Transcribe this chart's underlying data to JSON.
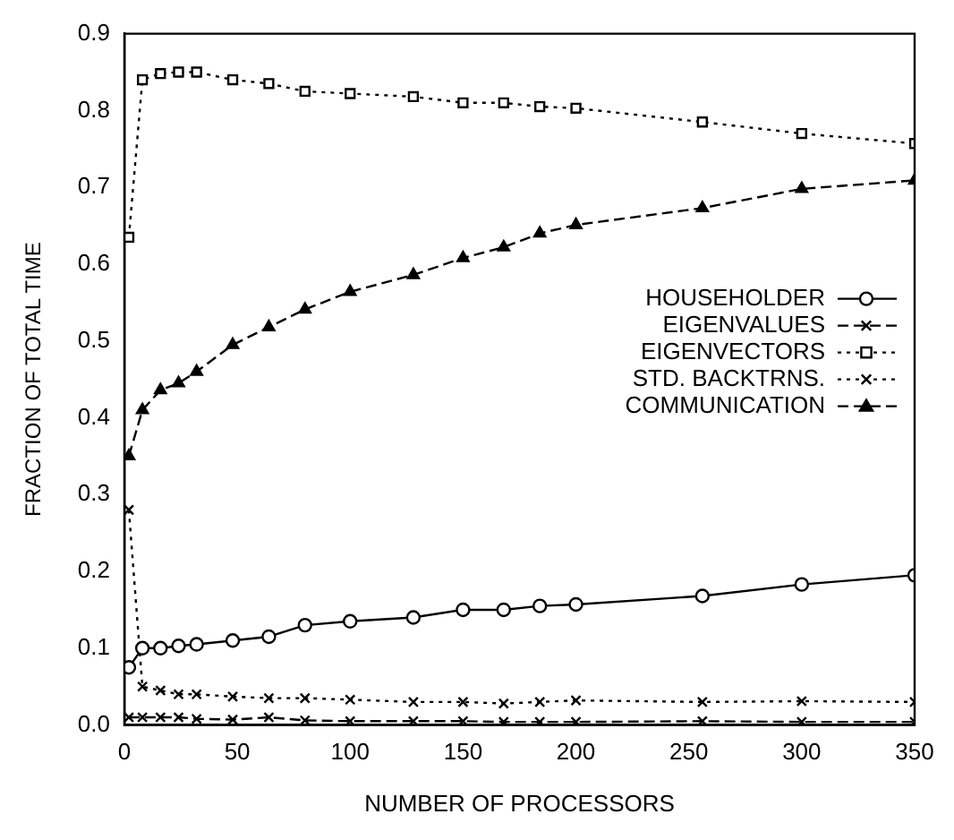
{
  "chart_data": {
    "type": "line",
    "xlabel": "NUMBER OF PROCESSORS",
    "ylabel": "FRACTION OF TOTAL TIME",
    "x": [
      2,
      8,
      16,
      24,
      32,
      48,
      64,
      80,
      100,
      128,
      150,
      168,
      184,
      200,
      256,
      300,
      350
    ],
    "xlim": [
      0,
      350
    ],
    "xticks": [
      0,
      50,
      100,
      150,
      200,
      250,
      300,
      350
    ],
    "ylim": [
      0,
      0.9
    ],
    "yticks": [
      {
        "value": 0,
        "label": "0.0"
      },
      0.1,
      0.2,
      0.3,
      0.4,
      0.5,
      0.6,
      0.7,
      0.8,
      0.9
    ],
    "grid": false,
    "legend": "right",
    "series": [
      {
        "name": "HOUSEHOLDER",
        "color": "#000000",
        "marker": "circle",
        "line_style": "solid",
        "values": [
          0.075,
          0.1,
          0.1,
          0.103,
          0.105,
          0.11,
          0.115,
          0.13,
          0.135,
          0.14,
          0.15,
          0.15,
          0.155,
          0.157,
          0.168,
          0.183,
          0.195
        ]
      },
      {
        "name": "EIGENVALUES",
        "color": "#000000",
        "marker": "cross",
        "line_style": "dashed",
        "values": [
          0.01,
          0.01,
          0.01,
          0.01,
          0.008,
          0.007,
          0.01,
          0.006,
          0.005,
          0.005,
          0.005,
          0.004,
          0.004,
          0.004,
          0.005,
          0.004,
          0.004
        ]
      },
      {
        "name": "EIGENVECTORS",
        "color": "#000000",
        "marker": "square",
        "line_style": "dotted",
        "values": [
          0.635,
          0.84,
          0.848,
          0.85,
          0.85,
          0.84,
          0.835,
          0.825,
          0.822,
          0.818,
          0.81,
          0.81,
          0.805,
          0.803,
          0.785,
          0.77,
          0.757
        ]
      },
      {
        "name": "STD. BACKTRNS.",
        "color": "#000000",
        "marker": "cross",
        "line_style": "dotted",
        "values": [
          0.28,
          0.05,
          0.045,
          0.04,
          0.04,
          0.037,
          0.035,
          0.035,
          0.033,
          0.03,
          0.03,
          0.028,
          0.03,
          0.032,
          0.03,
          0.031,
          0.03
        ]
      },
      {
        "name": "COMMUNICATION",
        "color": "#000000",
        "marker": "triangle",
        "line_style": "dashed",
        "values": [
          0.35,
          0.41,
          0.436,
          0.445,
          0.46,
          0.495,
          0.518,
          0.541,
          0.564,
          0.586,
          0.608,
          0.622,
          0.64,
          0.651,
          0.673,
          0.698,
          0.709
        ]
      }
    ]
  }
}
